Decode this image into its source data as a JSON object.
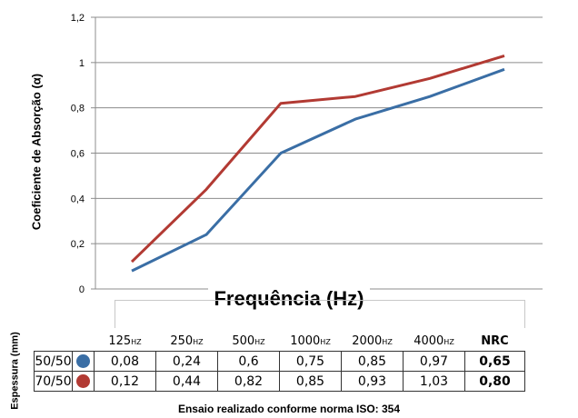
{
  "chart_data": {
    "type": "line",
    "categories": [
      "125",
      "250",
      "500",
      "1000",
      "2000",
      "4000"
    ],
    "series": [
      {
        "name": "50/50",
        "color": "#3a6ea5",
        "values": [
          0.08,
          0.24,
          0.6,
          0.75,
          0.85,
          0.97
        ],
        "nrc": "0,65"
      },
      {
        "name": "70/50",
        "color": "#b23a33",
        "values": [
          0.12,
          0.44,
          0.82,
          0.85,
          0.93,
          1.03
        ],
        "nrc": "0,80"
      }
    ],
    "ylabel": "Coeficiente de Absorção (α)",
    "xlabel": "Frequência (Hz)",
    "ylim": [
      0,
      1.2
    ],
    "yticks": [
      0,
      0.2,
      0.4,
      0.6,
      0.8,
      1,
      1.2
    ],
    "ytick_labels": [
      "0",
      "0,2",
      "0,4",
      "0,6",
      "0,8",
      "1",
      "1,2"
    ],
    "grid": true
  },
  "table": {
    "row_header": "Espessura (mm)",
    "header_unit": "HZ",
    "nrc_label": "NRC",
    "rows": [
      {
        "label": "50/50",
        "color": "#3a6ea5",
        "cells": [
          "0,08",
          "0,24",
          "0,6",
          "0,75",
          "0,85",
          "0,97"
        ],
        "nrc": "0,65"
      },
      {
        "label": "70/50",
        "color": "#b23a33",
        "cells": [
          "0,12",
          "0,44",
          "0,82",
          "0,85",
          "0,93",
          "1,03"
        ],
        "nrc": "0,80"
      }
    ]
  },
  "footnote": "Ensaio realizado conforme norma ISO: 354"
}
